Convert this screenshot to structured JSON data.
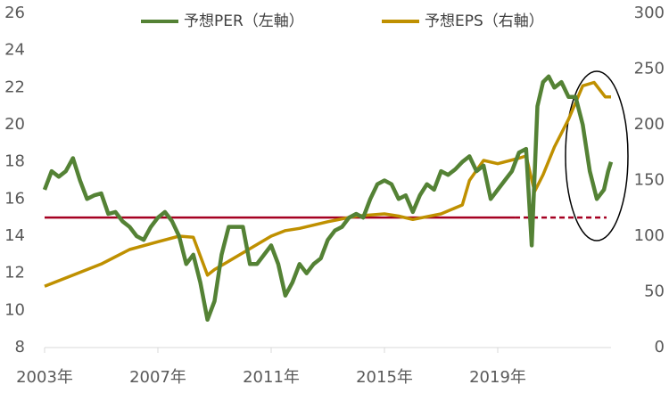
{
  "chart_data": {
    "type": "line",
    "xlim": [
      2003,
      2023
    ],
    "xticks": [
      {
        "value": 2003,
        "label": "2003年"
      },
      {
        "value": 2007,
        "label": "2007年"
      },
      {
        "value": 2011,
        "label": "2011年"
      },
      {
        "value": 2015,
        "label": "2015年"
      },
      {
        "value": 2019,
        "label": "2019年"
      }
    ],
    "ylim": [
      8,
      26
    ],
    "yticks": [
      8,
      10,
      12,
      14,
      16,
      18,
      20,
      22,
      24,
      26
    ],
    "y2lim": [
      0,
      300
    ],
    "y2ticks": [
      0,
      50,
      100,
      150,
      200,
      250,
      300
    ],
    "grid": false,
    "legend": "top",
    "hline": {
      "value": 15,
      "color": "#a50021",
      "dash_start": 2019.6
    },
    "series": [
      {
        "name": "予想PER（左軸）",
        "color": "#548235",
        "x": [
          2003.0,
          2003.25,
          2003.5,
          2003.75,
          2004.0,
          2004.25,
          2004.5,
          2004.75,
          2005.0,
          2005.25,
          2005.5,
          2005.75,
          2006.0,
          2006.25,
          2006.5,
          2006.75,
          2007.0,
          2007.25,
          2007.5,
          2007.75,
          2008.0,
          2008.25,
          2008.5,
          2008.75,
          2009.0,
          2009.25,
          2009.5,
          2009.75,
          2010.0,
          2010.25,
          2010.5,
          2010.75,
          2011.0,
          2011.25,
          2011.5,
          2011.75,
          2012.0,
          2012.25,
          2012.5,
          2012.75,
          2013.0,
          2013.25,
          2013.5,
          2013.75,
          2014.0,
          2014.25,
          2014.5,
          2014.75,
          2015.0,
          2015.25,
          2015.5,
          2015.75,
          2016.0,
          2016.25,
          2016.5,
          2016.75,
          2017.0,
          2017.25,
          2017.5,
          2017.75,
          2018.0,
          2018.25,
          2018.5,
          2018.75,
          2019.0,
          2019.25,
          2019.5,
          2019.75,
          2020.0,
          2020.2,
          2020.4,
          2020.6,
          2020.8,
          2021.0,
          2021.25,
          2021.5,
          2021.75,
          2022.0,
          2022.25,
          2022.5,
          2022.75,
          2022.9,
          2023.0
        ],
        "values": [
          16.5,
          17.5,
          17.2,
          17.5,
          18.2,
          17,
          16,
          16.2,
          16.3,
          15.2,
          15.3,
          14.8,
          14.5,
          14,
          13.8,
          14.5,
          15,
          15.3,
          14.8,
          14,
          12.5,
          13,
          11.5,
          9.5,
          10.5,
          13,
          14.5,
          14.5,
          14.5,
          12.5,
          12.5,
          13,
          13.5,
          12.5,
          10.8,
          11.5,
          12.5,
          12,
          12.5,
          12.8,
          13.8,
          14.3,
          14.5,
          15,
          15.2,
          15,
          16,
          16.8,
          17,
          16.8,
          16,
          16.2,
          15.3,
          16.2,
          16.8,
          16.5,
          17.5,
          17.3,
          17.6,
          18,
          18.3,
          17.5,
          17.8,
          16,
          16.5,
          17,
          17.5,
          18.5,
          18.7,
          13.5,
          21,
          22.3,
          22.6,
          22,
          22.3,
          21.5,
          21.5,
          20,
          17.5,
          16,
          16.5,
          17.5,
          18
        ]
      },
      {
        "name": "予想EPS（右軸）",
        "color": "#bf9000",
        "axis": "y2",
        "x": [
          2003,
          2004,
          2005,
          2006,
          2007,
          2007.75,
          2008.25,
          2008.75,
          2009,
          2010,
          2011,
          2011.5,
          2012,
          2013,
          2014,
          2015,
          2015.5,
          2016,
          2017,
          2017.75,
          2018,
          2018.5,
          2019,
          2019.75,
          2020,
          2020.3,
          2020.6,
          2021,
          2021.5,
          2022,
          2022.4,
          2022.8,
          2023
        ],
        "values": [
          55,
          65,
          75,
          88,
          95,
          100,
          99,
          65,
          70,
          85,
          100,
          105,
          107,
          113,
          118,
          120,
          118,
          115,
          120,
          128,
          150,
          168,
          165,
          170,
          172,
          140,
          155,
          180,
          205,
          235,
          238,
          225,
          225
        ]
      }
    ]
  }
}
